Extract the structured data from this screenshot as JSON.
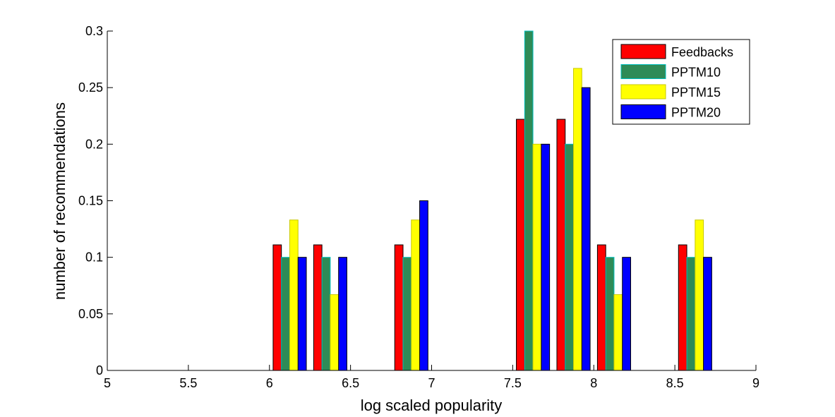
{
  "chart_data": {
    "type": "bar",
    "title": "",
    "xlabel": "log scaled popularity",
    "ylabel": "number of recommendations",
    "xlim": [
      5,
      9
    ],
    "ylim": [
      0,
      0.3
    ],
    "xticks": [
      "5",
      "5.5",
      "6",
      "6.5",
      "7",
      "7.5",
      "8",
      "8.5",
      "9"
    ],
    "yticks": [
      "0",
      "0.05",
      "0.1",
      "0.15",
      "0.2",
      "0.25",
      "0.3"
    ],
    "grid": false,
    "legend_position": "top-right",
    "bin_centers": [
      5.125,
      5.375,
      5.625,
      5.875,
      6.125,
      6.375,
      6.625,
      6.875,
      7.125,
      7.375,
      7.625,
      7.875,
      8.125,
      8.375,
      8.625,
      8.875
    ],
    "series": [
      {
        "name": "Feedbacks",
        "color": "#ff0000",
        "edge": "#000000",
        "values": [
          0,
          0,
          0,
          0,
          0.111,
          0.111,
          0,
          0.111,
          0,
          0,
          0.222,
          0.222,
          0.111,
          0,
          0.111,
          0
        ]
      },
      {
        "name": "PPTM10",
        "color": "#2e8b57",
        "edge": "#00bfbf",
        "values": [
          0,
          0,
          0,
          0,
          0.1,
          0.1,
          0,
          0.1,
          0,
          0,
          0.3,
          0.2,
          0.1,
          0,
          0.1,
          0
        ]
      },
      {
        "name": "PPTM15",
        "color": "#ffff00",
        "edge": "#c8c800",
        "values": [
          0,
          0,
          0,
          0,
          0.133,
          0.067,
          0,
          0.133,
          0,
          0,
          0.2,
          0.267,
          0.067,
          0,
          0.133,
          0
        ]
      },
      {
        "name": "PPTM20",
        "color": "#0000ff",
        "edge": "#000000",
        "values": [
          0,
          0,
          0,
          0,
          0.1,
          0.1,
          0,
          0.15,
          0,
          0,
          0.2,
          0.25,
          0.1,
          0,
          0.1,
          0
        ]
      }
    ]
  }
}
